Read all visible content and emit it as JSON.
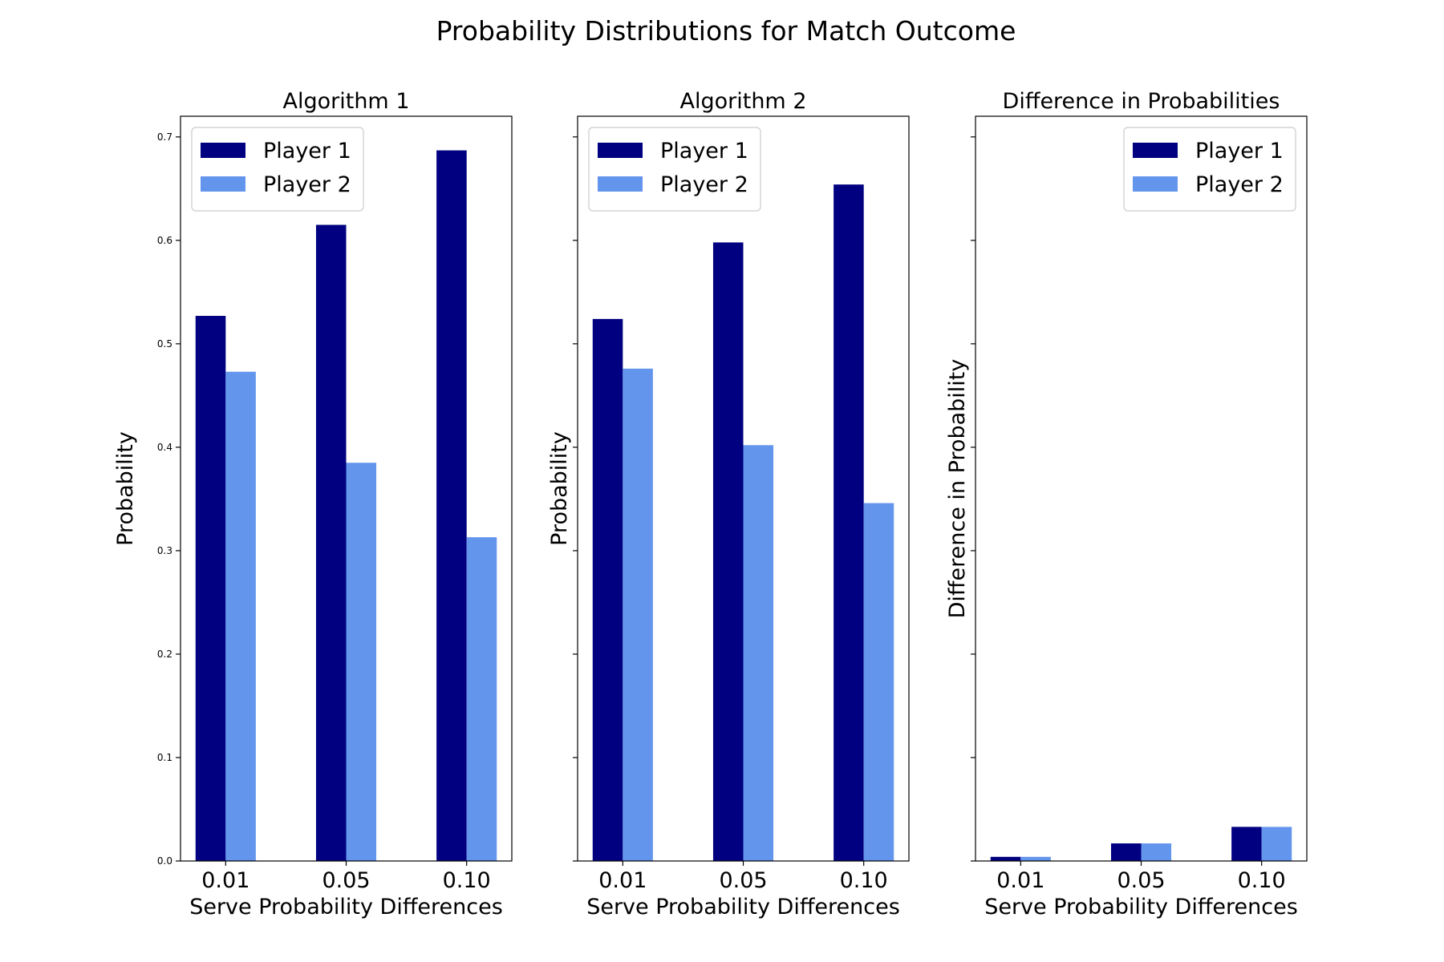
{
  "suptitle": "Probability Distributions for Match Outcome",
  "colors": {
    "player1": "#000080",
    "player2": "#6495ED"
  },
  "chart_data": [
    {
      "type": "bar",
      "title": "Algorithm 1",
      "xlabel": "Serve Probability Differences",
      "ylabel": "Probability",
      "categories": [
        "0.01",
        "0.05",
        "0.10"
      ],
      "series": [
        {
          "name": "Player 1",
          "values": [
            0.527,
            0.615,
            0.687
          ]
        },
        {
          "name": "Player 2",
          "values": [
            0.473,
            0.385,
            0.313
          ]
        }
      ],
      "ylim": [
        0,
        0.72
      ],
      "yticks": [
        "0.0",
        "0.1",
        "0.2",
        "0.3",
        "0.4",
        "0.5",
        "0.6",
        "0.7"
      ],
      "show_ytick_labels": true,
      "legend": "top-left",
      "grid": false
    },
    {
      "type": "bar",
      "title": "Algorithm 2",
      "xlabel": "Serve Probability Differences",
      "ylabel": "Probability",
      "categories": [
        "0.01",
        "0.05",
        "0.10"
      ],
      "series": [
        {
          "name": "Player 1",
          "values": [
            0.524,
            0.598,
            0.654
          ]
        },
        {
          "name": "Player 2",
          "values": [
            0.476,
            0.402,
            0.346
          ]
        }
      ],
      "ylim": [
        0,
        0.72
      ],
      "yticks": [
        "0.0",
        "0.1",
        "0.2",
        "0.3",
        "0.4",
        "0.5",
        "0.6",
        "0.7"
      ],
      "show_ytick_labels": false,
      "legend": "top-left",
      "grid": false
    },
    {
      "type": "bar",
      "title": "Difference in Probabilities",
      "xlabel": "Serve Probability Differences",
      "ylabel": "Difference in Probability",
      "categories": [
        "0.01",
        "0.05",
        "0.10"
      ],
      "series": [
        {
          "name": "Player 1",
          "values": [
            0.004,
            0.017,
            0.033
          ]
        },
        {
          "name": "Player 2",
          "values": [
            0.004,
            0.017,
            0.033
          ]
        }
      ],
      "ylim": [
        0,
        0.72
      ],
      "yticks": [
        "0.0",
        "0.1",
        "0.2",
        "0.3",
        "0.4",
        "0.5",
        "0.6",
        "0.7"
      ],
      "show_ytick_labels": false,
      "legend": "top-right",
      "grid": false
    }
  ]
}
